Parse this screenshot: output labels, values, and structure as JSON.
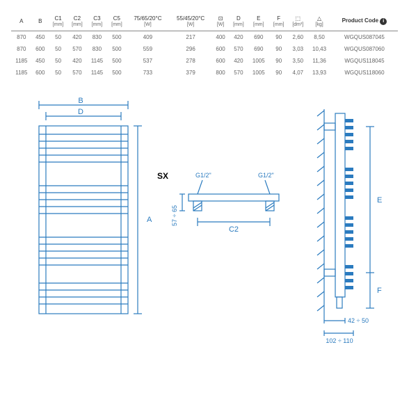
{
  "table": {
    "headers": [
      {
        "label": "A",
        "unit": ""
      },
      {
        "label": "B",
        "unit": ""
      },
      {
        "label": "C1",
        "unit": "[mm]"
      },
      {
        "label": "C2",
        "unit": "[mm]"
      },
      {
        "label": "C3",
        "unit": "[mm]"
      },
      {
        "label": "C5",
        "unit": "[mm]"
      },
      {
        "label": "75/65/20°C",
        "unit": "[W]"
      },
      {
        "label": "55/45/20°C",
        "unit": "[W]"
      },
      {
        "label": "⊡",
        "unit": "[W]"
      },
      {
        "label": "D",
        "unit": "[mm]"
      },
      {
        "label": "E",
        "unit": "[mm]"
      },
      {
        "label": "F",
        "unit": "[mm]"
      },
      {
        "label": "⬚",
        "unit": "[dm³]"
      },
      {
        "label": "△",
        "unit": "[kg]"
      },
      {
        "label": "Product",
        "unit": "Code"
      }
    ],
    "rows": [
      [
        "870",
        "450",
        "50",
        "420",
        "830",
        "500",
        "409",
        "217",
        "400",
        "420",
        "690",
        "90",
        "2,60",
        "8,50",
        "WGQUS087045"
      ],
      [
        "870",
        "600",
        "50",
        "570",
        "830",
        "500",
        "559",
        "296",
        "600",
        "570",
        "690",
        "90",
        "3,03",
        "10,43",
        "WGQUS087060"
      ],
      [
        "1185",
        "450",
        "50",
        "420",
        "1145",
        "500",
        "537",
        "278",
        "600",
        "420",
        "1005",
        "90",
        "3,50",
        "11,36",
        "WGQUS118045"
      ],
      [
        "1185",
        "600",
        "50",
        "570",
        "1145",
        "500",
        "733",
        "379",
        "800",
        "570",
        "1005",
        "90",
        "4,07",
        "13,93",
        "WGQUS118060"
      ]
    ]
  },
  "diagram": {
    "labels": {
      "B": "B",
      "D": "D",
      "A": "A",
      "SX": "SX",
      "G12a": "G1/2\"",
      "G12b": "G1/2\"",
      "dim57": "57 ÷ 65",
      "C2": "C2",
      "E": "E",
      "F": "F",
      "dim42": "42 ÷ 50",
      "dim102": "102 ÷ 110"
    },
    "colors": {
      "blueprint": "#2B7BBF",
      "bg": "#ffffff",
      "text": "#333333"
    }
  }
}
